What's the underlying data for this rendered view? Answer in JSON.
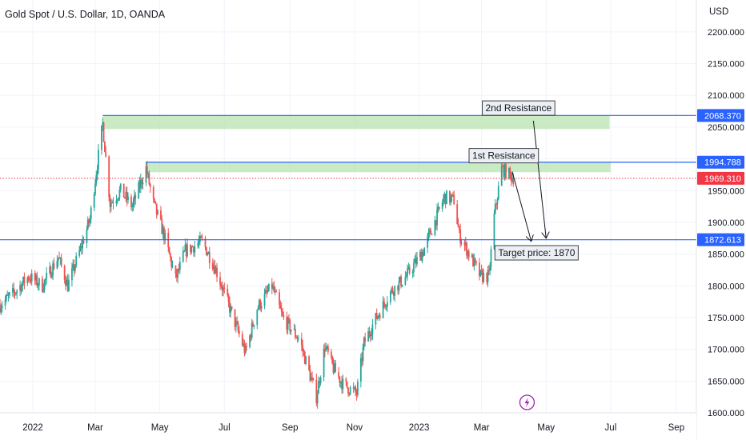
{
  "header": {
    "title": "Gold Spot / U.S. Dollar, 1D, OANDA",
    "currency": "USD"
  },
  "colors": {
    "up": "#26a69a",
    "down": "#ef5350",
    "level_line": "#2962ff",
    "zone_fill": "#b8e3b0",
    "current_price": "#f23645",
    "target_icon": "#9c27b0"
  },
  "icon": "lightning-icon",
  "chart_data": {
    "type": "candlestick",
    "title": "Gold Spot / U.S. Dollar, 1D, OANDA",
    "ylabel": "USD",
    "ylim": [
      1600,
      2220
    ],
    "xlim": [
      "2021-12-01",
      "2023-09-20"
    ],
    "yticks": [
      2200,
      2150,
      2100,
      2050,
      2000,
      1950,
      1900,
      1850,
      1800,
      1750,
      1700,
      1650,
      1600
    ],
    "ytick_labels": [
      "2200.000",
      "2150.000",
      "2100.000",
      "2050.000",
      "2000.000",
      "1950.000",
      "1900.000",
      "1850.000",
      "1800.000",
      "1750.000",
      "1700.000",
      "1650.000",
      "1600.000"
    ],
    "xticks": [
      {
        "date": "2022-01-01",
        "label": "2022"
      },
      {
        "date": "2022-03-01",
        "label": "Mar"
      },
      {
        "date": "2022-05-01",
        "label": "May"
      },
      {
        "date": "2022-07-01",
        "label": "Jul"
      },
      {
        "date": "2022-09-01",
        "label": "Sep"
      },
      {
        "date": "2022-11-01",
        "label": "Nov"
      },
      {
        "date": "2023-01-01",
        "label": "2023"
      },
      {
        "date": "2023-03-01",
        "label": "Mar"
      },
      {
        "date": "2023-05-01",
        "label": "May"
      },
      {
        "date": "2023-07-01",
        "label": "Jul"
      },
      {
        "date": "2023-09-01",
        "label": "Sep"
      }
    ],
    "price_path": [
      [
        "2021-12-01",
        1770
      ],
      [
        "2021-12-15",
        1790
      ],
      [
        "2021-12-28",
        1815
      ],
      [
        "2022-01-10",
        1800
      ],
      [
        "2022-01-25",
        1845
      ],
      [
        "2022-02-03",
        1800
      ],
      [
        "2022-02-15",
        1858
      ],
      [
        "2022-02-24",
        1905
      ],
      [
        "2022-03-08",
        2055
      ],
      [
        "2022-03-15",
        1930
      ],
      [
        "2022-03-25",
        1950
      ],
      [
        "2022-04-05",
        1925
      ],
      [
        "2022-04-18",
        1985
      ],
      [
        "2022-04-25",
        1930
      ],
      [
        "2022-05-05",
        1880
      ],
      [
        "2022-05-16",
        1810
      ],
      [
        "2022-05-25",
        1855
      ],
      [
        "2022-06-10",
        1870
      ],
      [
        "2022-06-22",
        1830
      ],
      [
        "2022-07-05",
        1770
      ],
      [
        "2022-07-21",
        1695
      ],
      [
        "2022-08-01",
        1765
      ],
      [
        "2022-08-15",
        1800
      ],
      [
        "2022-08-25",
        1750
      ],
      [
        "2022-09-10",
        1715
      ],
      [
        "2022-09-26",
        1625
      ],
      [
        "2022-10-04",
        1705
      ],
      [
        "2022-10-12",
        1670
      ],
      [
        "2022-10-21",
        1645
      ],
      [
        "2022-11-03",
        1630
      ],
      [
        "2022-11-10",
        1710
      ],
      [
        "2022-11-20",
        1745
      ],
      [
        "2022-12-05",
        1790
      ],
      [
        "2022-12-20",
        1815
      ],
      [
        "2023-01-05",
        1855
      ],
      [
        "2023-01-25",
        1940
      ],
      [
        "2023-02-03",
        1935
      ],
      [
        "2023-02-08",
        1880
      ],
      [
        "2023-02-28",
        1815
      ],
      [
        "2023-03-08",
        1815
      ],
      [
        "2023-03-13",
        1910
      ],
      [
        "2023-03-20",
        1985
      ],
      [
        "2023-03-31",
        1970
      ]
    ],
    "levels": [
      {
        "label": "2068.370",
        "value": 2068.37,
        "start": "2022-03-08"
      },
      {
        "label": "1994.788",
        "value": 1994.788,
        "start": "2022-04-18"
      },
      {
        "label": "1872.613",
        "value": 1872.613,
        "start": "2021-12-01"
      }
    ],
    "current_price": {
      "label": "1969.310",
      "value": 1969.31
    },
    "zones": [
      {
        "start": "2022-03-08",
        "end": "2023-06-30",
        "top": 2068,
        "bottom": 2047
      },
      {
        "start": "2022-04-18",
        "end": "2023-07-01",
        "top": 1994,
        "bottom": 1979
      }
    ],
    "annotations": [
      {
        "text": "2nd Resistance",
        "date": "2023-04-05",
        "value": 2080
      },
      {
        "text": "1st Resistance",
        "date": "2023-03-22",
        "value": 2005
      },
      {
        "text": "Target price: 1870",
        "date": "2023-04-22",
        "value": 1852
      }
    ],
    "arrows": [
      {
        "from": [
          "2023-04-19",
          2060
        ],
        "to": [
          "2023-05-01",
          1875
        ]
      },
      {
        "from": [
          "2023-03-30",
          1980
        ],
        "to": [
          "2023-04-17",
          1870
        ]
      }
    ],
    "grid": true
  }
}
